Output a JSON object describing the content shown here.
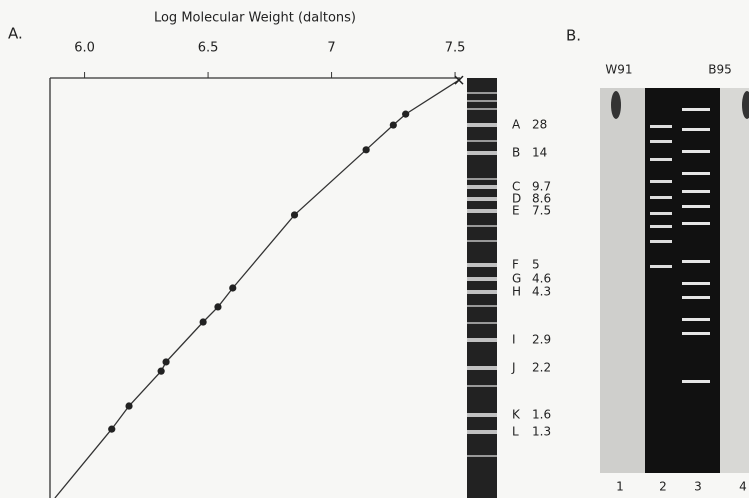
{
  "panel_a": {
    "label": "A.",
    "chart_data": {
      "type": "line",
      "xlabel": "Log Molecular Weight (daltons)",
      "xlim": [
        5.86,
        7.52
      ],
      "xticks": [
        {
          "value": 6.0,
          "label": "6.0"
        },
        6.5,
        7,
        7.5
      ],
      "ylim": [
        0,
        100
      ],
      "color": "#333333",
      "x": [
        7.3,
        7.25,
        7.14,
        6.85,
        6.6,
        6.54,
        6.48,
        6.33,
        6.31,
        6.18,
        6.11
      ],
      "values": [
        8.6,
        11.2,
        17.1,
        32.6,
        50.0,
        54.5,
        58.1,
        67.6,
        69.8,
        78.1,
        83.6
      ],
      "end_x": 7.516,
      "end_value": 0.5,
      "line": {
        "x": [
          7.516,
          7.3,
          7.25,
          7.14,
          6.85,
          6.6,
          6.54,
          6.48,
          6.33,
          6.31,
          6.18,
          6.11,
          5.88
        ],
        "values": [
          0.5,
          8.6,
          11.2,
          17.1,
          32.6,
          50.0,
          54.5,
          58.1,
          67.6,
          69.8,
          78.1,
          83.6,
          100
        ]
      }
    },
    "bands": [
      {
        "label": "A",
        "size": 28
      },
      {
        "label": "B",
        "size": 14
      },
      {
        "label": "C",
        "size": 9.7
      },
      {
        "label": "D",
        "size": 8.6
      },
      {
        "label": "E",
        "size": 7.5
      },
      {
        "label": "F",
        "size": 5
      },
      {
        "label": "G",
        "size": 4.6
      },
      {
        "label": "H",
        "size": 4.3
      },
      {
        "label": "I",
        "size": 2.9
      },
      {
        "label": "J",
        "size": 2.2
      },
      {
        "label": "K",
        "size": 1.6
      },
      {
        "label": "L",
        "size": 1.3
      }
    ]
  },
  "panel_b": {
    "label": "B.",
    "strain_labels": [
      "W91",
      "B95"
    ],
    "lanes": [
      "1",
      "2",
      "3",
      "4"
    ]
  }
}
